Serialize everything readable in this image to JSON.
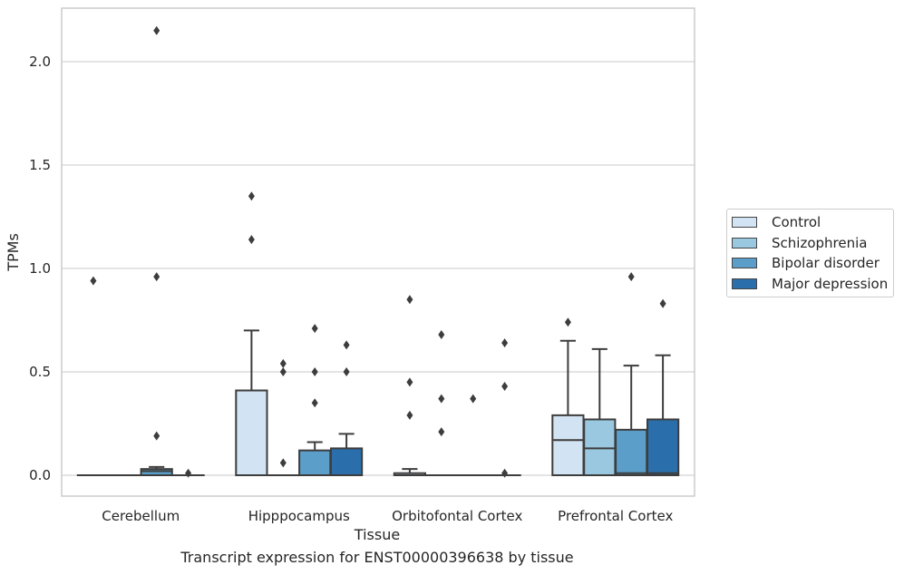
{
  "caption": "Transcript expression for ENST00000396638 by tissue",
  "chart_data": {
    "type": "box",
    "xlabel": "Tissue",
    "ylabel": "TPMs",
    "ylim": [
      -0.1,
      2.25
    ],
    "yticks": [
      0.0,
      0.5,
      1.0,
      1.5,
      2.0
    ],
    "ytick_labels": [
      "0.0",
      "0.5",
      "1.0",
      "1.5",
      "2.0"
    ],
    "grid": "horizontal",
    "legend_placement": "right-center",
    "categories": [
      "Cerebellum",
      "Hipppocampus",
      "Orbitofontal Cortex",
      "Prefrontal Cortex"
    ],
    "series": [
      {
        "name": "Control",
        "color": "#d2e3f3",
        "boxes": [
          {
            "q1": 0,
            "median": 0,
            "q3": 0,
            "whislo": 0,
            "whishi": 0,
            "fliers": [
              0.94
            ]
          },
          {
            "q1": 0,
            "median": 0,
            "q3": 0.41,
            "whislo": 0,
            "whishi": 0.7,
            "fliers": [
              1.14,
              1.35
            ]
          },
          {
            "q1": 0,
            "median": 0,
            "q3": 0.01,
            "whislo": 0,
            "whishi": 0.03,
            "fliers": [
              0.29,
              0.45,
              0.85
            ]
          },
          {
            "q1": 0,
            "median": 0.17,
            "q3": 0.29,
            "whislo": 0,
            "whishi": 0.65,
            "fliers": [
              0.74
            ]
          }
        ]
      },
      {
        "name": "Schizophrenia",
        "color": "#9ac8e0",
        "boxes": [
          {
            "q1": 0,
            "median": 0,
            "q3": 0,
            "whislo": 0,
            "whishi": 0,
            "fliers": []
          },
          {
            "q1": 0,
            "median": 0,
            "q3": 0,
            "whislo": 0,
            "whishi": 0,
            "fliers": [
              0.06,
              0.5,
              0.54
            ]
          },
          {
            "q1": 0,
            "median": 0,
            "q3": 0,
            "whislo": 0,
            "whishi": 0,
            "fliers": [
              0.21,
              0.37,
              0.68
            ]
          },
          {
            "q1": 0,
            "median": 0.13,
            "q3": 0.27,
            "whislo": 0,
            "whishi": 0.61,
            "fliers": []
          }
        ]
      },
      {
        "name": "Bipolar disorder",
        "color": "#5a9ec9",
        "boxes": [
          {
            "q1": 0,
            "median": 0.02,
            "q3": 0.03,
            "whislo": 0,
            "whishi": 0.04,
            "fliers": [
              0.19,
              0.96,
              2.15
            ]
          },
          {
            "q1": 0,
            "median": 0,
            "q3": 0.12,
            "whislo": 0,
            "whishi": 0.16,
            "fliers": [
              0.35,
              0.5,
              0.71
            ]
          },
          {
            "q1": 0,
            "median": 0,
            "q3": 0,
            "whislo": 0,
            "whishi": 0,
            "fliers": [
              0.37
            ]
          },
          {
            "q1": 0,
            "median": 0.01,
            "q3": 0.22,
            "whislo": 0,
            "whishi": 0.53,
            "fliers": [
              0.96
            ]
          }
        ]
      },
      {
        "name": "Major depression",
        "color": "#2a6fab",
        "boxes": [
          {
            "q1": 0,
            "median": 0,
            "q3": 0,
            "whislo": 0,
            "whishi": 0,
            "fliers": [
              0.01
            ]
          },
          {
            "q1": 0,
            "median": 0,
            "q3": 0.13,
            "whislo": 0,
            "whishi": 0.2,
            "fliers": [
              0.5,
              0.63
            ]
          },
          {
            "q1": 0,
            "median": 0,
            "q3": 0,
            "whislo": 0,
            "whishi": 0,
            "fliers": [
              0.01,
              0.43,
              0.64
            ]
          },
          {
            "q1": 0,
            "median": 0.01,
            "q3": 0.27,
            "whislo": 0,
            "whishi": 0.58,
            "fliers": [
              0.83
            ]
          }
        ]
      }
    ]
  }
}
